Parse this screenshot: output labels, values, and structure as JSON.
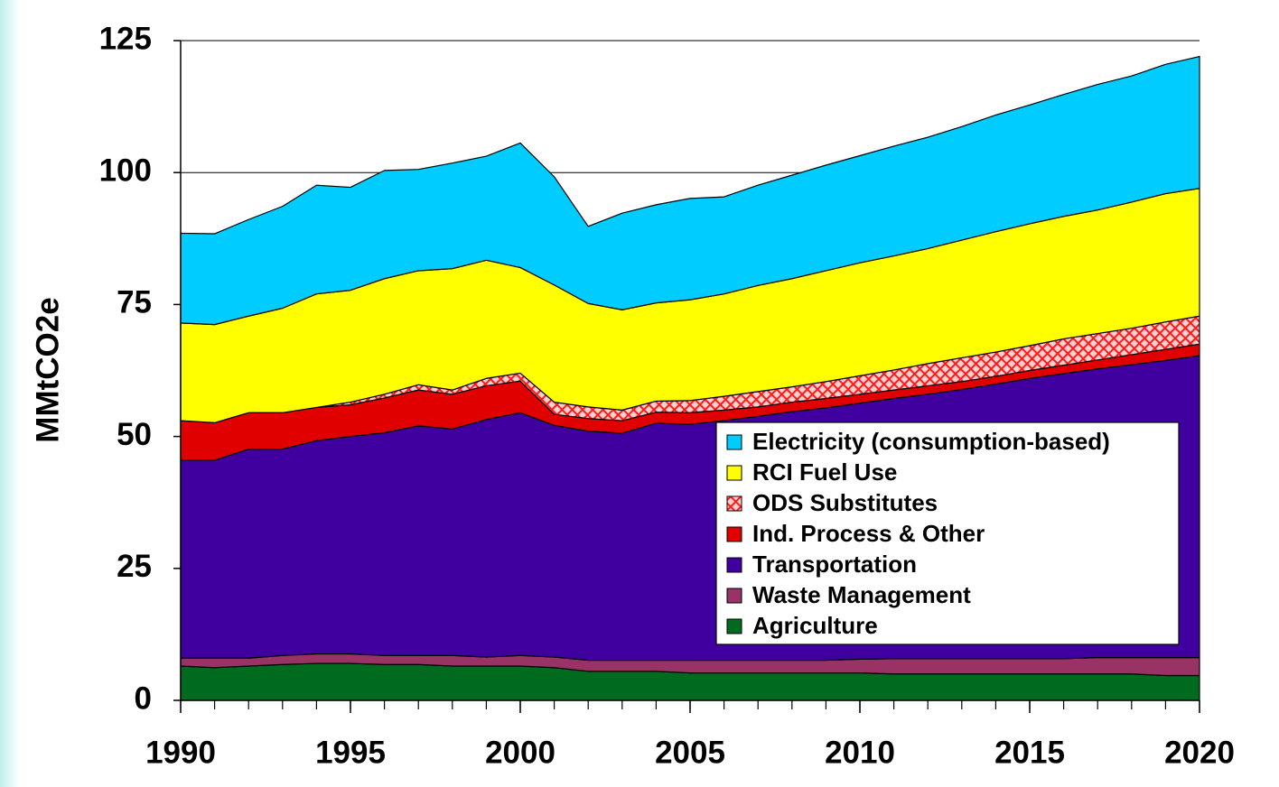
{
  "chart_data": {
    "type": "stacked_area",
    "y_label": "MMtCO2e",
    "x": [
      1990,
      1991,
      1992,
      1993,
      1994,
      1995,
      1996,
      1997,
      1998,
      1999,
      2000,
      2001,
      2002,
      2003,
      2004,
      2005,
      2006,
      2007,
      2008,
      2009,
      2010,
      2011,
      2012,
      2013,
      2014,
      2015,
      2016,
      2017,
      2018,
      2019,
      2020
    ],
    "xlim": [
      1990,
      2020
    ],
    "xticks": [
      1990,
      1995,
      2000,
      2005,
      2010,
      2015,
      2020
    ],
    "ylim": [
      0,
      125
    ],
    "yticks": [
      0,
      25,
      50,
      75,
      100,
      125
    ],
    "grid": true,
    "legend": "lower right",
    "series": [
      {
        "name": "Agriculture",
        "color": "#006b1f",
        "values": [
          6.5,
          6.2,
          6.5,
          6.8,
          7.0,
          7.0,
          6.8,
          6.8,
          6.5,
          6.5,
          6.5,
          6.2,
          5.5,
          5.5,
          5.5,
          5.2,
          5.2,
          5.2,
          5.2,
          5.2,
          5.2,
          5.0,
          5.0,
          5.0,
          5.0,
          5.0,
          5.0,
          5.0,
          5.0,
          4.7,
          4.7
        ]
      },
      {
        "name": "Waste Management",
        "color": "#993366",
        "values": [
          1.5,
          1.8,
          1.5,
          1.7,
          1.8,
          1.8,
          1.7,
          1.7,
          2.0,
          1.7,
          2.0,
          2.0,
          2.1,
          2.1,
          2.1,
          2.4,
          2.4,
          2.4,
          2.4,
          2.4,
          2.6,
          2.9,
          2.9,
          2.9,
          2.9,
          2.9,
          2.9,
          3.1,
          3.1,
          3.4,
          3.4
        ]
      },
      {
        "name": "Transportation",
        "color": "#4000a0",
        "values": [
          37.5,
          37.5,
          39.6,
          39.1,
          40.4,
          41.2,
          42.2,
          43.5,
          42.9,
          45.0,
          46.0,
          43.9,
          43.4,
          43.0,
          44.9,
          44.7,
          45.4,
          46.2,
          47.1,
          47.8,
          48.5,
          49.3,
          50.1,
          51.0,
          52.0,
          53.1,
          54.0,
          54.7,
          55.5,
          56.3,
          57.2
        ]
      },
      {
        "name": "Ind. Process & Other",
        "color": "#e00000",
        "values": [
          7.5,
          7.1,
          6.9,
          6.9,
          6.3,
          6.0,
          6.6,
          6.8,
          6.6,
          6.4,
          6.0,
          2.1,
          2.4,
          2.4,
          2.1,
          2.2,
          2.0,
          1.8,
          1.8,
          1.8,
          1.7,
          1.6,
          1.6,
          1.5,
          1.5,
          1.5,
          1.6,
          1.7,
          1.9,
          2.1,
          2.2
        ]
      },
      {
        "name": "ODS Substitutes",
        "color": "#ff2020",
        "hatch": true,
        "values": [
          0,
          0,
          0,
          0,
          0,
          0.5,
          0.7,
          1.0,
          0.8,
          1.4,
          1.5,
          2.3,
          2.2,
          2.0,
          2.1,
          2.3,
          2.6,
          2.9,
          2.9,
          3.2,
          3.5,
          3.8,
          4.2,
          4.5,
          4.6,
          4.7,
          5.0,
          5.0,
          5.0,
          5.2,
          5.3
        ]
      },
      {
        "name": "RCI Fuel Use",
        "color": "#ffff00",
        "values": [
          18.5,
          18.6,
          18.3,
          19.8,
          21.5,
          21.2,
          21.9,
          21.6,
          23.0,
          22.4,
          20.0,
          22.2,
          19.6,
          19.0,
          18.6,
          19.1,
          19.4,
          20.1,
          20.5,
          21.0,
          21.4,
          21.6,
          21.8,
          22.3,
          22.8,
          23.1,
          23.2,
          23.4,
          23.9,
          24.3,
          24.2
        ]
      },
      {
        "name": "Electricity (consumption-based)",
        "color": "#00ccff",
        "values": [
          17.0,
          17.2,
          18.3,
          19.3,
          20.6,
          19.5,
          20.5,
          19.2,
          20.0,
          19.7,
          23.6,
          20.5,
          14.6,
          18.3,
          18.6,
          19.2,
          18.4,
          19.0,
          19.6,
          20.0,
          20.3,
          20.8,
          21.1,
          21.5,
          22.1,
          22.5,
          23.1,
          23.8,
          23.9,
          24.5,
          25.0
        ]
      }
    ]
  }
}
